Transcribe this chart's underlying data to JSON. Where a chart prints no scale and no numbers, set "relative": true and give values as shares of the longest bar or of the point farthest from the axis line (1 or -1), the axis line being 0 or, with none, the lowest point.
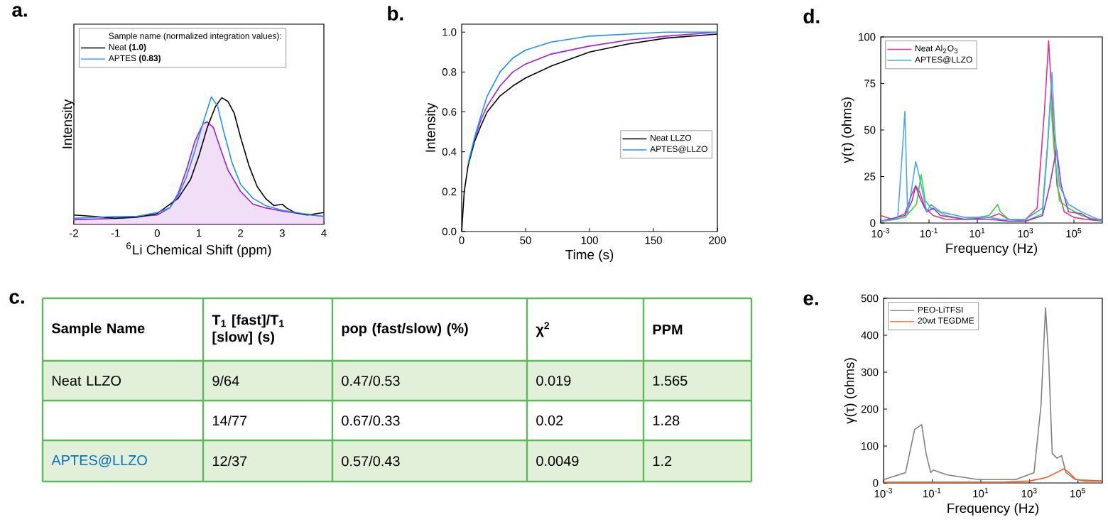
{
  "chart_data": [
    {
      "type": "line",
      "title": "a.",
      "xlabel": "$^{6}$Li Chemical Shift (ppm)",
      "ylabel": "Intensity",
      "relative": true,
      "xlim": [
        -2,
        4
      ],
      "xticks": [
        -2,
        -1,
        0,
        1,
        2,
        3,
        4
      ],
      "legend": "top left",
      "legend_title": "Sample name (normalized integration values):",
      "series": [
        {
          "type": "area",
          "color": "#a020c8",
          "x": [
            -2,
            -1,
            0,
            0.3,
            0.5,
            0.7,
            0.9,
            1.1,
            1.2,
            1.35,
            1.5,
            1.7,
            2.0,
            2.3,
            2.6,
            3,
            3.5,
            4
          ],
          "values": [
            0.037,
            0.048,
            0.074,
            0.13,
            0.241,
            0.426,
            0.648,
            0.789,
            0.804,
            0.759,
            0.611,
            0.426,
            0.259,
            0.159,
            0.13,
            0.104,
            0.081,
            0.063
          ]
        },
        {
          "name": "Neat **(1.0)**",
          "color": "#000000",
          "x": [
            -2,
            -1.5,
            -1,
            -0.5,
            0,
            0.5,
            0.8,
            1.0,
            1.2,
            1.4,
            1.55,
            1.7,
            1.85,
            2.0,
            2.2,
            2.4,
            2.6,
            2.8,
            3.0,
            3.1,
            3.3,
            3.6,
            4
          ],
          "values": [
            0.074,
            0.063,
            0.048,
            0.056,
            0.085,
            0.204,
            0.352,
            0.537,
            0.759,
            0.926,
            0.993,
            0.963,
            0.87,
            0.685,
            0.463,
            0.296,
            0.204,
            0.148,
            0.159,
            0.13,
            0.093,
            0.074,
            0.093
          ]
        },
        {
          "name": "APTES **(0.83)**",
          "color": "#1e90ff",
          "x": [
            -2,
            -1.5,
            -1,
            -0.5,
            0,
            0.3,
            0.5,
            0.7,
            0.9,
            1.1,
            1.3,
            1.45,
            1.6,
            1.8,
            2.0,
            2.3,
            2.6,
            3,
            3.5,
            4
          ],
          "values": [
            0.048,
            0.056,
            0.063,
            0.063,
            0.093,
            0.13,
            0.222,
            0.37,
            0.574,
            0.796,
            1.0,
            0.926,
            0.722,
            0.481,
            0.315,
            0.204,
            0.148,
            0.111,
            0.085,
            0.063
          ]
        }
      ]
    },
    {
      "type": "line",
      "title": "b.",
      "xlabel": "Time (s)",
      "ylabel": "Intensity",
      "xlim": [
        0,
        200
      ],
      "ylim": [
        0,
        1.04
      ],
      "xticks": [
        0,
        50,
        100,
        150,
        200
      ],
      "yticks": [
        {
          "value": 0,
          "label": "0.0"
        },
        0.2,
        0.4,
        0.6,
        0.8,
        {
          "value": 1,
          "label": "1.0"
        }
      ],
      "legend": "right",
      "x": [
        0,
        2,
        5,
        10,
        15,
        20,
        30,
        40,
        50,
        70,
        100,
        130,
        160,
        200
      ],
      "series": [
        {
          "name": "Neat LLZO",
          "color": "#000000",
          "values": [
            0,
            0.2,
            0.33,
            0.45,
            0.53,
            0.6,
            0.68,
            0.73,
            0.77,
            0.83,
            0.9,
            0.94,
            0.97,
            0.99
          ]
        },
        {
          "color": "#a020f0",
          "values": [
            null,
            null,
            null,
            0.46,
            0.56,
            0.63,
            0.73,
            0.8,
            0.84,
            0.89,
            0.93,
            0.96,
            0.98,
            1.0
          ]
        },
        {
          "name": "APTES@LLZO",
          "color": "#1e90ff",
          "values": [
            null,
            null,
            0.34,
            0.47,
            0.58,
            0.68,
            0.8,
            0.87,
            0.91,
            0.95,
            0.98,
            0.99,
            1.0,
            1.0
          ]
        }
      ]
    },
    {
      "type": "other",
      "title": "c.",
      "categories": [
        "Sample Name",
        "T$_{1}$ [fast]/T$_{1}$ [slow] (s)",
        "pop (fast/slow) (%)",
        "χ$^{2}$",
        "PPM"
      ],
      "y_categories": [
        "Neat LLZO",
        null,
        "APTES@LLZO"
      ],
      "colors": [
        "#000000",
        "#7030a0",
        "#0070c0"
      ],
      "cell_labels": [
        [
          "9/64",
          "0.47/0.53",
          "0.019",
          "1.565"
        ],
        [
          "14/77",
          "0.67/0.33",
          "0.02",
          "1.28"
        ],
        [
          "12/37",
          "0.57/0.43",
          "0.0049",
          "1.2"
        ]
      ]
    },
    {
      "type": "line",
      "title": "d.",
      "xlabel": "Frequency (Hz)",
      "ylabel": "γ(τ) (ohms)",
      "log": "x",
      "xlim": [
        0.001,
        1500000
      ],
      "ylim": [
        0,
        100
      ],
      "xticks": [
        {
          "value": 0.001,
          "label": "10$^{-3}$"
        },
        {
          "value": 0.1,
          "label": "10$^{-1}$"
        },
        {
          "value": 10,
          "label": "10$^{1}$"
        },
        {
          "value": 1000,
          "label": "10$^{3}$"
        },
        {
          "value": 100000,
          "label": "10$^{5}$"
        }
      ],
      "yticks": [
        0,
        25,
        50,
        75,
        100
      ],
      "legend": "top left",
      "series": [
        {
          "name": "Neat Al$_{2}$O$_{3}$",
          "color": "#e8308c",
          "x": [
            0.001,
            0.003,
            0.01,
            0.02,
            0.028,
            0.04,
            0.07,
            0.15,
            0.5,
            3,
            30,
            80,
            200,
            1000,
            3000,
            6000,
            9000,
            13000,
            20000,
            40000,
            100000,
            300000,
            1500000
          ],
          "values": [
            4,
            2,
            5,
            16,
            20,
            17,
            8,
            4,
            2,
            2,
            3,
            5,
            2,
            2,
            8,
            60,
            98,
            60,
            20,
            6,
            3,
            2,
            1
          ]
        },
        {
          "color": "#33dd33",
          "x": [
            0.001,
            0.01,
            0.03,
            0.047,
            0.07,
            0.12,
            0.2,
            0.5,
            3,
            30,
            70,
            90,
            200,
            1000,
            5000,
            8000,
            10700,
            15000,
            25000,
            60000,
            200000,
            1500000
          ],
          "values": [
            1,
            3,
            10,
            26,
            12,
            8,
            7,
            4,
            2,
            4,
            10,
            6,
            2,
            1,
            5,
            40,
            68,
            40,
            12,
            8,
            4,
            1
          ]
        },
        {
          "color": "#9b30d9",
          "x": [
            0.001,
            0.01,
            0.02,
            0.028,
            0.04,
            0.08,
            0.15,
            0.3,
            3,
            30,
            200,
            1000,
            5000,
            10000,
            19000,
            30000,
            60000,
            200000,
            500000,
            1500000
          ],
          "values": [
            1,
            4,
            12,
            20,
            14,
            6,
            8,
            4,
            2,
            2,
            1,
            1,
            4,
            20,
            40,
            20,
            6,
            5,
            2,
            2
          ]
        },
        {
          "name": "APTES@LLZO",
          "color": "#4aa8e8",
          "x": [
            0.001,
            0.005,
            0.008,
            0.01,
            0.013,
            0.02,
            0.028,
            0.04,
            0.08,
            0.12,
            0.3,
            3,
            30,
            100,
            1000,
            5000,
            9000,
            12300,
            16000,
            25000,
            60000,
            200000,
            1500000
          ],
          "values": [
            1,
            2,
            40,
            60,
            5,
            20,
            33,
            25,
            6,
            10,
            6,
            3,
            3,
            2,
            2,
            8,
            50,
            81,
            50,
            20,
            10,
            6,
            1
          ]
        }
      ]
    },
    {
      "type": "line",
      "title": "e.",
      "xlabel": "Frequency (Hz)",
      "ylabel": "γ(τ) (ohms)",
      "log": "x",
      "xlim": [
        0.001,
        1000000
      ],
      "ylim": [
        0,
        500
      ],
      "xticks": [
        {
          "value": 0.001,
          "label": "10$^{-3}$"
        },
        {
          "value": 0.1,
          "label": "10$^{-1}$"
        },
        {
          "value": 10,
          "label": "10$^{1}$"
        },
        {
          "value": 1000,
          "label": "10$^{3}$"
        },
        {
          "value": 100000,
          "label": "10$^{5}$"
        }
      ],
      "yticks": [
        0,
        100,
        200,
        300,
        400,
        500
      ],
      "legend": "top left",
      "series": [
        {
          "name": "PEO-LiTFSI",
          "color": "#808080",
          "x": [
            0.001,
            0.008,
            0.019,
            0.037,
            0.056,
            0.087,
            0.11,
            0.4,
            8,
            270,
            1550,
            3000,
            4600,
            6200,
            8700,
            13500,
            21000,
            32000,
            78000,
            1000000
          ],
          "values": [
            9,
            28,
            145,
            158,
            80,
            28,
            35,
            22,
            9,
            9,
            28,
            210,
            474,
            338,
            80,
            67,
            74,
            28,
            9,
            5
          ]
        },
        {
          "name": "20wt TEGDME",
          "color": "#ff5a1e",
          "x": [
            0.001,
            100,
            1000,
            5000,
            15000,
            25000,
            40000,
            80000,
            200000,
            1000000
          ],
          "values": [
            2,
            3,
            5,
            15,
            30,
            38,
            30,
            10,
            5,
            5
          ]
        }
      ]
    }
  ]
}
